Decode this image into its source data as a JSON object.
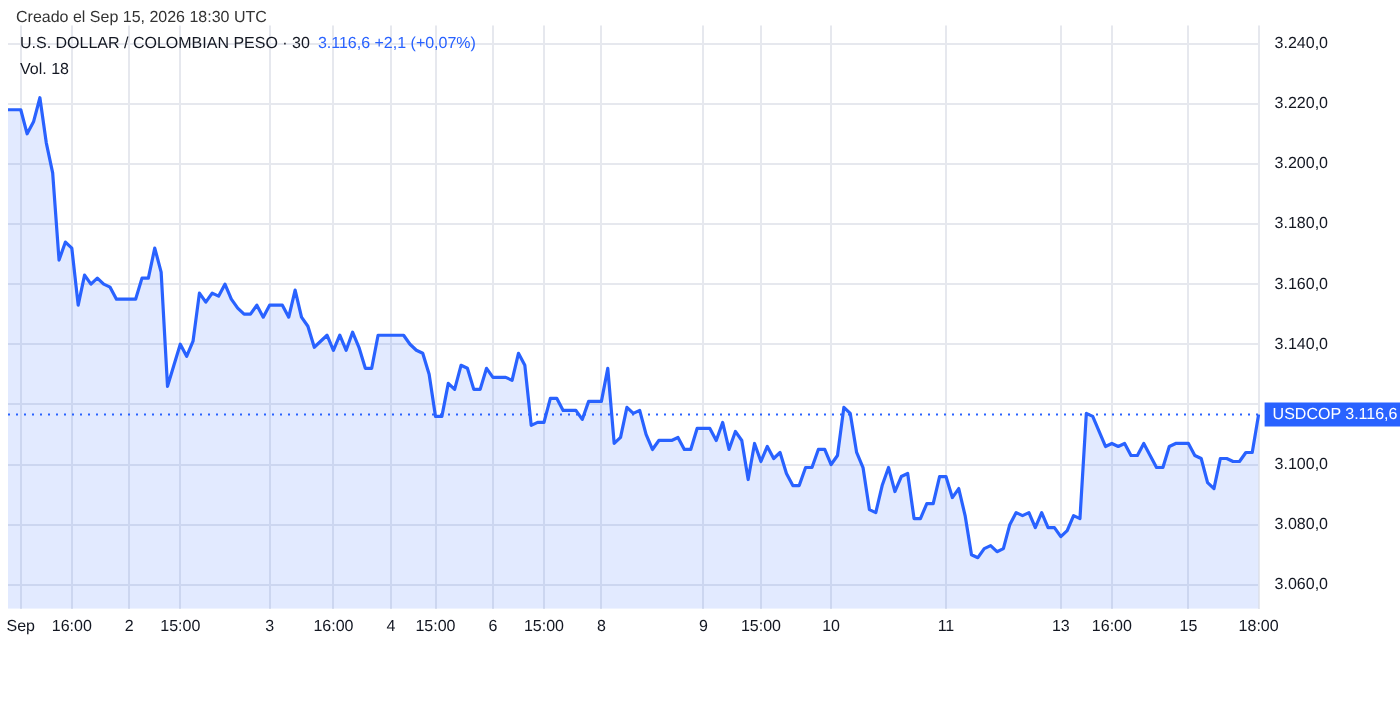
{
  "chart_data": {
    "type": "area",
    "title": "U.S. DOLLAR / COLOMBIAN PESO · 30",
    "subtitle": "3.116,6 +2,1 (+0,07%)",
    "annotations": [
      "Creado el Sep 15, 2026 18:30 UTC",
      "Vol. 18"
    ],
    "categories": [
      null,
      null,
      "Sep",
      null,
      null,
      null,
      null,
      null,
      null,
      null,
      "16:00",
      null,
      null,
      null,
      null,
      null,
      null,
      null,
      null,
      "2",
      null,
      null,
      null,
      null,
      null,
      null,
      null,
      "15:00",
      null,
      null,
      null,
      null,
      null,
      null,
      null,
      null,
      null,
      null,
      null,
      null,
      null,
      "3",
      null,
      null,
      null,
      null,
      null,
      null,
      null,
      null,
      null,
      "16:00",
      null,
      null,
      null,
      null,
      null,
      null,
      null,
      null,
      "4",
      null,
      null,
      null,
      null,
      null,
      null,
      "15:00",
      null,
      null,
      null,
      null,
      null,
      null,
      null,
      null,
      "6",
      null,
      null,
      null,
      null,
      null,
      null,
      null,
      "15:00",
      null,
      null,
      null,
      null,
      null,
      null,
      null,
      null,
      "8",
      null,
      null,
      null,
      null,
      null,
      null,
      null,
      null,
      null,
      null,
      null,
      null,
      null,
      null,
      null,
      "9",
      null,
      null,
      null,
      null,
      null,
      null,
      null,
      null,
      "15:00",
      null,
      null,
      null,
      null,
      null,
      null,
      null,
      null,
      null,
      null,
      "10",
      null,
      null,
      null,
      null,
      null,
      null,
      null,
      null,
      null,
      null,
      null,
      null,
      null,
      null,
      null,
      null,
      null,
      "11",
      null,
      null,
      null,
      null,
      null,
      null,
      null,
      null,
      null,
      null,
      null,
      null,
      null,
      null,
      null,
      null,
      null,
      "13",
      null,
      null,
      null,
      null,
      null,
      null,
      null,
      "16:00",
      null,
      null,
      null,
      null,
      null,
      null,
      null,
      null,
      null,
      null,
      null,
      "15",
      null,
      null,
      null,
      null,
      null,
      null,
      null,
      null,
      null,
      null,
      "18:00"
    ],
    "series": [
      {
        "color": "#2962ff",
        "values": [
          3218,
          3218,
          3218,
          3210,
          3214,
          3222,
          3207,
          3197,
          3168,
          3174,
          3172,
          3153,
          3163,
          3160,
          3162,
          3160,
          3159,
          3155,
          3155,
          3155,
          3155,
          3162,
          3162,
          3172,
          3164,
          3126,
          3133,
          3140,
          3136,
          3141,
          3157,
          3154,
          3157,
          3156,
          3160,
          3155,
          3152,
          3150,
          3150,
          3153,
          3149,
          3153,
          3153,
          3153,
          3149,
          3158,
          3149,
          3146,
          3139,
          3141,
          3143,
          3138,
          3143,
          3138,
          3144,
          3139,
          3132,
          3132,
          3143,
          3143,
          3143,
          3143,
          3143,
          3140,
          3138,
          3137,
          3130,
          3116,
          3116,
          3127,
          3125,
          3133,
          3132,
          3125,
          3125,
          3132,
          3129,
          3129,
          3129,
          3128,
          3137,
          3133,
          3113,
          3114,
          3114,
          3122,
          3122,
          3118,
          3118,
          3118,
          3115,
          3121,
          3121,
          3121,
          3132,
          3107,
          3109,
          3119,
          3117,
          3118,
          3110,
          3105,
          3108,
          3108,
          3108,
          3109,
          3105,
          3105,
          3112,
          3112,
          3112,
          3108,
          3114,
          3105,
          3111,
          3108,
          3095,
          3107,
          3101,
          3106,
          3102,
          3104,
          3097,
          3093,
          3093,
          3099,
          3099,
          3105,
          3105,
          3100,
          3103,
          3119,
          3117,
          3104,
          3099,
          3085,
          3084,
          3093,
          3099,
          3091,
          3096,
          3097,
          3082,
          3082,
          3087,
          3087,
          3096,
          3096,
          3089,
          3092,
          3083,
          3070,
          3069,
          3072,
          3073,
          3071,
          3072,
          3080,
          3084,
          3083,
          3084,
          3079,
          3084,
          3079,
          3079,
          3076,
          3078,
          3083,
          3082,
          3117,
          3116,
          3111,
          3106,
          3107,
          3106,
          3107,
          3103,
          3103,
          3107,
          3103,
          3099,
          3099,
          3106,
          3107,
          3107,
          3107,
          3103,
          3102,
          3094,
          3092,
          3102,
          3102,
          3101,
          3101,
          3104,
          3104,
          3116.6
        ]
      }
    ],
    "ylim": [
      3052,
      3246
    ],
    "yticks": [
      {
        "value": 3060,
        "label": "3.060,0"
      },
      {
        "value": 3080,
        "label": "3.080,0"
      },
      {
        "value": 3100,
        "label": "3.100,0"
      },
      {
        "value": 3120,
        "label": null
      },
      {
        "value": 3140,
        "label": "3.140,0"
      },
      {
        "value": 3160,
        "label": "3.160,0"
      },
      {
        "value": 3180,
        "label": "3.180,0"
      },
      {
        "value": 3200,
        "label": "3.200,0"
      },
      {
        "value": 3220,
        "label": "3.220,0"
      },
      {
        "value": 3240,
        "label": "3.240,0"
      }
    ],
    "grid": true,
    "marker": "none",
    "line_style": "solid",
    "legend": false,
    "ref_lines": [
      {
        "axis": "y",
        "value": 3116.6,
        "label": "USDCOP 3.116,6",
        "color": "#2962ff",
        "line_style": "dotted"
      }
    ]
  }
}
